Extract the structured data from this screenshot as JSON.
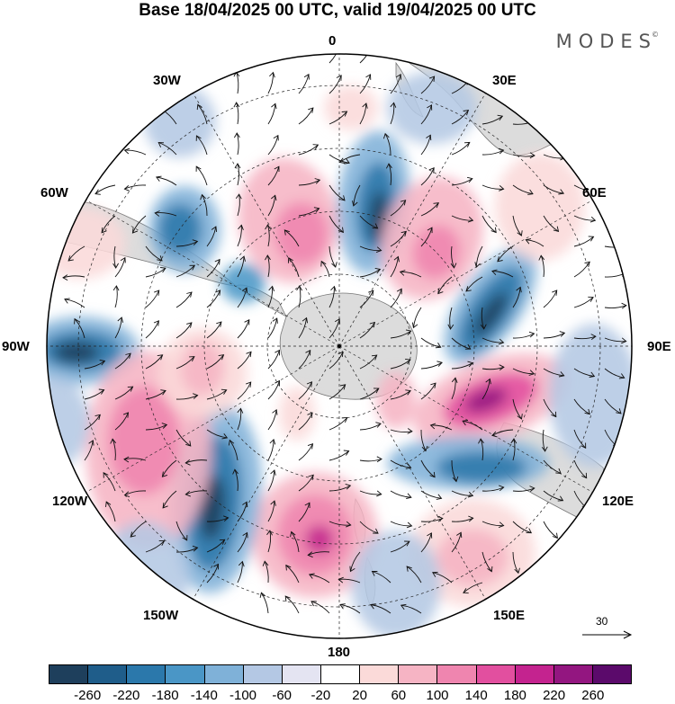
{
  "title": "Base 18/04/2025 00 UTC, valid 19/04/2025 00 UTC",
  "brand": "MODES",
  "brand_mark": "©",
  "longitude_labels": [
    "0",
    "30E",
    "60E",
    "90E",
    "120E",
    "150E",
    "180",
    "150W",
    "120W",
    "90W",
    "60W",
    "30W"
  ],
  "reference_vector": {
    "label": "30"
  },
  "colorbar": {
    "colors": [
      "#1e3f5c",
      "#1f5d8a",
      "#2b78ab",
      "#4a96c6",
      "#7fb1d8",
      "#b4c8e4",
      "#e4e4f2",
      "#ffffff",
      "#fbdad9",
      "#f6b4c4",
      "#ef85af",
      "#e24f9f",
      "#c4238f",
      "#931680",
      "#5b0a6b"
    ],
    "ticks": [
      "-260",
      "-220",
      "-180",
      "-140",
      "-100",
      "-60",
      "-20",
      "20",
      "60",
      "100",
      "140",
      "180",
      "220",
      "260"
    ]
  },
  "map_colors": {
    "land": "#dcdcdc",
    "coast": "#777777",
    "grid": "#222222",
    "arrow": "#111111"
  }
}
